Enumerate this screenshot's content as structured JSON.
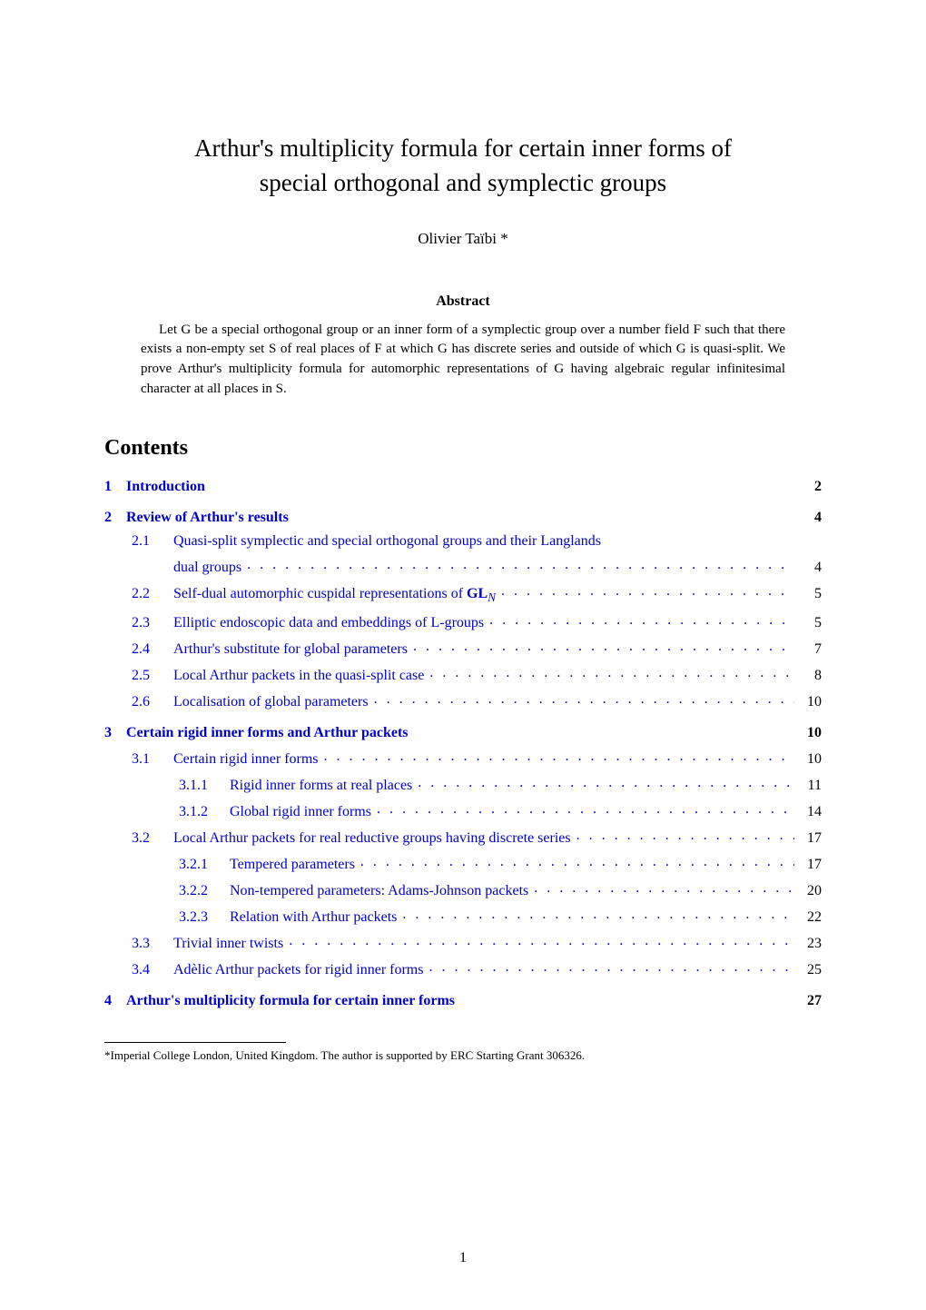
{
  "title_line1": "Arthur's multiplicity formula for certain inner forms of",
  "title_line2": "special orthogonal and symplectic groups",
  "author": "Olivier Taïbi *",
  "abstract_heading": "Abstract",
  "abstract_text": "Let G be a special orthogonal group or an inner form of a symplectic group over a number field F such that there exists a non-empty set S of real places of F at which G has discrete series and outside of which G is quasi-split. We prove Arthur's multiplicity formula for automorphic representations of G having algebraic regular infinitesimal character at all places in S.",
  "contents_heading": "Contents",
  "toc": [
    {
      "level": "section",
      "num": "1",
      "title": "Introduction",
      "page": "2"
    },
    {
      "level": "section",
      "num": "2",
      "title": "Review of Arthur's results",
      "page": "4"
    },
    {
      "level": "subsection",
      "num": "2.1",
      "title": "Quasi-split symplectic and special orthogonal groups and their Langlands dual groups",
      "page": "4",
      "wrap": true
    },
    {
      "level": "subsection",
      "num": "2.2",
      "title_prefix": "Self-dual automorphic cuspidal representations of ",
      "title_math": "GL",
      "title_sub": "N",
      "page": "5"
    },
    {
      "level": "subsection",
      "num": "2.3",
      "title": "Elliptic endoscopic data and embeddings of L-groups",
      "page": "5"
    },
    {
      "level": "subsection",
      "num": "2.4",
      "title": "Arthur's substitute for global parameters",
      "page": "7"
    },
    {
      "level": "subsection",
      "num": "2.5",
      "title": "Local Arthur packets in the quasi-split case",
      "page": "8"
    },
    {
      "level": "subsection",
      "num": "2.6",
      "title": "Localisation of global parameters",
      "page": "10"
    },
    {
      "level": "section",
      "num": "3",
      "title": "Certain rigid inner forms and Arthur packets",
      "page": "10"
    },
    {
      "level": "subsection",
      "num": "3.1",
      "title": "Certain rigid inner forms",
      "page": "10"
    },
    {
      "level": "subsubsection",
      "num": "3.1.1",
      "title": "Rigid inner forms at real places",
      "page": "11"
    },
    {
      "level": "subsubsection",
      "num": "3.1.2",
      "title": "Global rigid inner forms",
      "page": "14"
    },
    {
      "level": "subsection",
      "num": "3.2",
      "title": "Local Arthur packets for real reductive groups having discrete series",
      "page": "17"
    },
    {
      "level": "subsubsection",
      "num": "3.2.1",
      "title": "Tempered parameters",
      "page": "17"
    },
    {
      "level": "subsubsection",
      "num": "3.2.2",
      "title": "Non-tempered parameters: Adams-Johnson packets",
      "page": "20"
    },
    {
      "level": "subsubsection",
      "num": "3.2.3",
      "title": "Relation with Arthur packets",
      "page": "22"
    },
    {
      "level": "subsection",
      "num": "3.3",
      "title": "Trivial inner twists",
      "page": "23"
    },
    {
      "level": "subsection",
      "num": "3.4",
      "title": "Adèlic Arthur packets for rigid inner forms",
      "page": "25"
    },
    {
      "level": "section",
      "num": "4",
      "title": "Arthur's multiplicity formula for certain inner forms",
      "page": "27"
    }
  ],
  "footnote": "*Imperial College London, United Kingdom. The author is supported by ERC Starting Grant 306326.",
  "page_number": "1",
  "colors": {
    "link": "#0000cc",
    "text": "#000000",
    "background": "#ffffff"
  },
  "fontsize": {
    "title": 27,
    "author": 17,
    "abstract_heading": 16,
    "abstract_text": 15,
    "contents_heading": 24,
    "toc": 16,
    "footnote": 13,
    "page_number": 16
  }
}
